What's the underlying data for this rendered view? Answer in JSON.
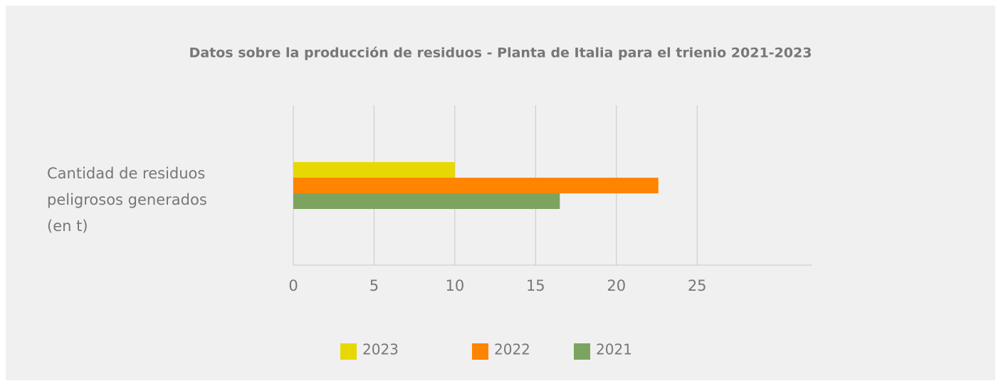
{
  "chart_data": {
    "type": "barh",
    "title": "Datos sobre la producción de residuos - Planta de Italia para el trienio 2021-2023",
    "categories": [
      "Cantidad de residuos peligrosos generados (en t)"
    ],
    "series": [
      {
        "name": "2023",
        "color": "#e6d800",
        "values": [
          10
        ]
      },
      {
        "name": "2022",
        "color": "#ff8400",
        "values": [
          22.6
        ]
      },
      {
        "name": "2021",
        "color": "#7da45e",
        "values": [
          16.5
        ]
      }
    ],
    "xlim": [
      0,
      32
    ],
    "xticks": [
      0,
      5,
      10,
      15,
      20,
      25
    ],
    "grid": true,
    "legend": "bottom"
  }
}
